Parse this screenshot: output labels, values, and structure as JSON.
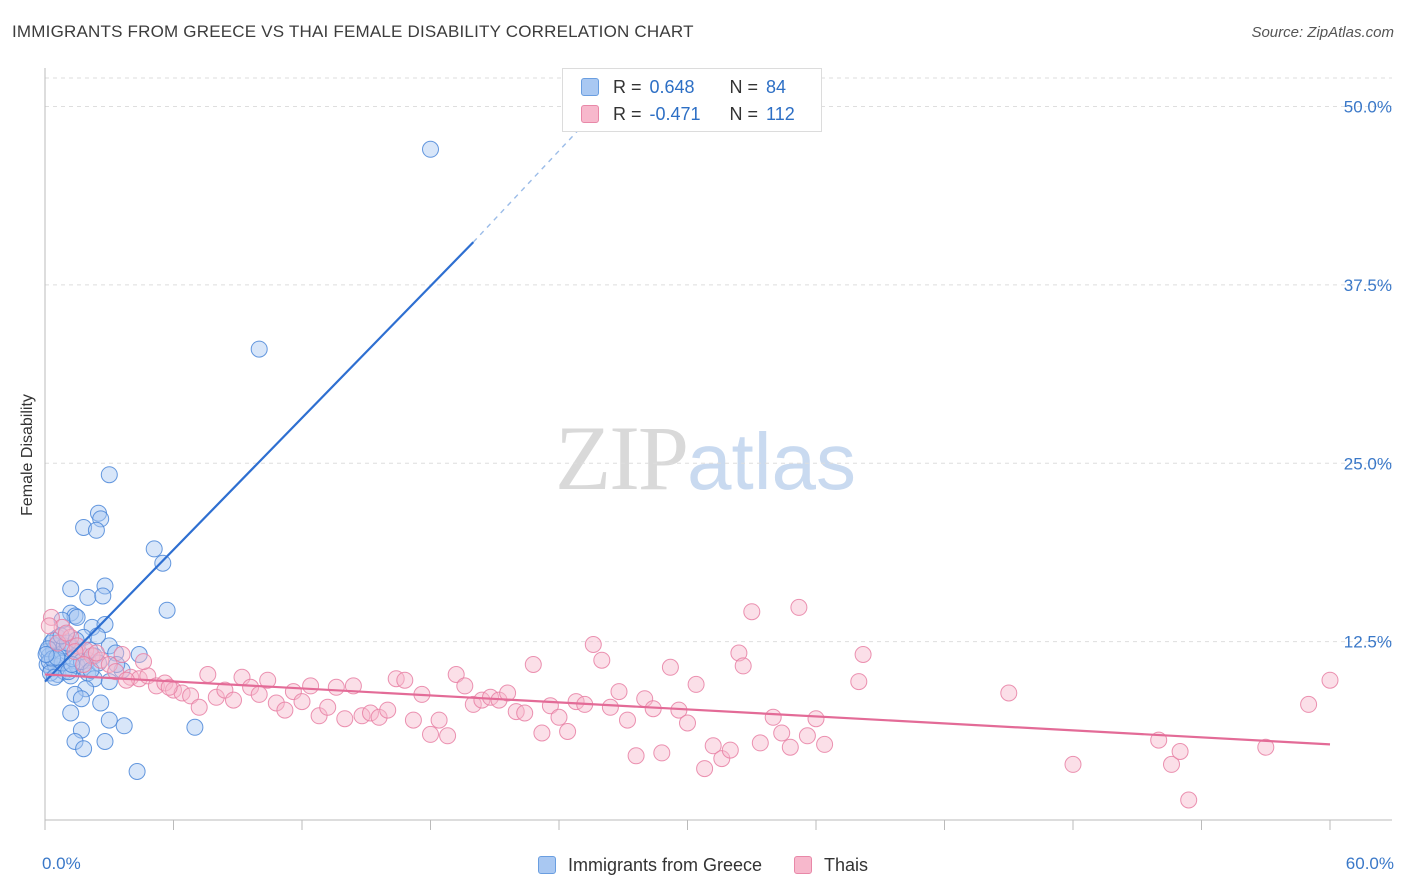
{
  "header": {
    "title": "IMMIGRANTS FROM GREECE VS THAI FEMALE DISABILITY CORRELATION CHART",
    "source": "Source: ZipAtlas.com"
  },
  "watermark": {
    "part1": "ZIP",
    "part2": "atlas"
  },
  "legend": {
    "rows": [
      {
        "r_label": "R =",
        "r_value": "0.648",
        "n_label": "N =",
        "n_value": "84",
        "color": "#a9c8f2",
        "border": "#6a9ee0"
      },
      {
        "r_label": "R =",
        "r_value": "-0.471",
        "n_label": "N =",
        "n_value": "112",
        "color": "#f7b8cc",
        "border": "#e888a8"
      }
    ]
  },
  "bottom_legend": [
    {
      "label": "Immigrants from Greece",
      "color": "#a9c8f2",
      "border": "#6a9ee0"
    },
    {
      "label": "Thais",
      "color": "#f7b8cc",
      "border": "#e888a8"
    }
  ],
  "chart_data": {
    "type": "scatter",
    "title": "IMMIGRANTS FROM GREECE VS THAI FEMALE DISABILITY CORRELATION CHART",
    "xlabel": "",
    "ylabel": "Female Disability",
    "xlim": [
      0,
      60
    ],
    "ylim": [
      0,
      52
    ],
    "x_tick_labels": [
      "0.0%",
      "60.0%"
    ],
    "y_ticks": [
      12.5,
      25.0,
      37.5,
      50.0
    ],
    "y_tick_labels": [
      "12.5%",
      "25.0%",
      "37.5%",
      "50.0%"
    ],
    "grid": true,
    "legend_position": "top-center",
    "series": [
      {
        "name": "Immigrants from Greece",
        "color": "#4a86d8",
        "fill": "#a9c8f2",
        "trend": {
          "x": [
            0,
            20
          ],
          "y": [
            9.7,
            40.5
          ],
          "dashed_to": [
            25,
            48.5
          ],
          "color": "#2e6fd1"
        },
        "points": [
          [
            18,
            47
          ],
          [
            10,
            33
          ],
          [
            3,
            24.2
          ],
          [
            2.5,
            21.5
          ],
          [
            2.6,
            21.1
          ],
          [
            1.8,
            20.5
          ],
          [
            2.4,
            20.3
          ],
          [
            5.1,
            19
          ],
          [
            5.5,
            18
          ],
          [
            1.2,
            16.2
          ],
          [
            2.8,
            16.4
          ],
          [
            2.0,
            15.6
          ],
          [
            2.7,
            15.7
          ],
          [
            5.7,
            14.7
          ],
          [
            1.2,
            14.5
          ],
          [
            1.4,
            14.3
          ],
          [
            0.8,
            14.0
          ],
          [
            1.5,
            14.2
          ],
          [
            2.2,
            13.5
          ],
          [
            2.8,
            13.7
          ],
          [
            0.6,
            12.8
          ],
          [
            1.0,
            13.0
          ],
          [
            1.8,
            12.8
          ],
          [
            0.3,
            12.4
          ],
          [
            0.5,
            12.2
          ],
          [
            0.1,
            11.8
          ],
          [
            0.2,
            11.5
          ],
          [
            0.4,
            11.9
          ],
          [
            0.7,
            11.6
          ],
          [
            1.0,
            11.8
          ],
          [
            1.3,
            12.0
          ],
          [
            1.6,
            11.7
          ],
          [
            2.0,
            11.2
          ],
          [
            2.3,
            11.5
          ],
          [
            3.0,
            12.2
          ],
          [
            3.3,
            11.7
          ],
          [
            4.4,
            11.6
          ],
          [
            0.1,
            10.9
          ],
          [
            0.3,
            10.6
          ],
          [
            0.6,
            10.2
          ],
          [
            0.9,
            10.4
          ],
          [
            1.2,
            10.1
          ],
          [
            1.5,
            10.8
          ],
          [
            1.8,
            10.7
          ],
          [
            2.0,
            10.3
          ],
          [
            2.3,
            9.9
          ],
          [
            3.0,
            9.7
          ],
          [
            3.6,
            10.5
          ],
          [
            0.2,
            11.1
          ],
          [
            0.5,
            10.8
          ],
          [
            0.8,
            11.0
          ],
          [
            1.1,
            10.4
          ],
          [
            1.3,
            11.3
          ],
          [
            1.7,
            11.1
          ],
          [
            0.4,
            12.6
          ],
          [
            1.9,
            9.2
          ],
          [
            1.4,
            8.8
          ],
          [
            1.7,
            8.5
          ],
          [
            2.6,
            8.2
          ],
          [
            1.2,
            7.5
          ],
          [
            3.0,
            7.0
          ],
          [
            3.7,
            6.6
          ],
          [
            1.7,
            6.3
          ],
          [
            7.0,
            6.5
          ],
          [
            2.8,
            5.5
          ],
          [
            1.4,
            5.5
          ],
          [
            1.8,
            5.0
          ],
          [
            4.3,
            3.4
          ],
          [
            0.9,
            12.2
          ],
          [
            2.5,
            11.0
          ],
          [
            0.15,
            12.0
          ],
          [
            0.35,
            11.3
          ],
          [
            0.55,
            11.4
          ],
          [
            1.05,
            12.4
          ],
          [
            1.25,
            10.9
          ],
          [
            2.1,
            11.9
          ],
          [
            0.25,
            10.3
          ],
          [
            0.75,
            12.9
          ],
          [
            1.45,
            12.6
          ],
          [
            2.45,
            12.9
          ],
          [
            3.35,
            10.9
          ],
          [
            0.05,
            11.6
          ],
          [
            0.45,
            10.0
          ],
          [
            2.15,
            10.5
          ]
        ]
      },
      {
        "name": "Thais",
        "color": "#e77fa3",
        "fill": "#f7b8cc",
        "trend": {
          "x": [
            0,
            60
          ],
          "y": [
            10.2,
            5.3
          ],
          "color": "#e36b97"
        },
        "points": [
          [
            0.3,
            14.2
          ],
          [
            0.8,
            13.5
          ],
          [
            1.2,
            12.8
          ],
          [
            1.5,
            12.2
          ],
          [
            1.9,
            11.9
          ],
          [
            2.2,
            11.5
          ],
          [
            2.6,
            11.2
          ],
          [
            3.0,
            10.9
          ],
          [
            3.3,
            10.4
          ],
          [
            3.6,
            11.6
          ],
          [
            4.0,
            10.0
          ],
          [
            4.4,
            9.9
          ],
          [
            4.8,
            10.1
          ],
          [
            5.2,
            9.4
          ],
          [
            5.6,
            9.6
          ],
          [
            6.0,
            9.1
          ],
          [
            6.4,
            8.9
          ],
          [
            6.8,
            8.7
          ],
          [
            7.2,
            7.9
          ],
          [
            7.6,
            10.2
          ],
          [
            8.0,
            8.6
          ],
          [
            8.4,
            9.1
          ],
          [
            8.8,
            8.4
          ],
          [
            9.2,
            10.0
          ],
          [
            9.6,
            9.3
          ],
          [
            10.0,
            8.8
          ],
          [
            10.4,
            9.8
          ],
          [
            10.8,
            8.2
          ],
          [
            11.2,
            7.7
          ],
          [
            11.6,
            9.0
          ],
          [
            12.0,
            8.3
          ],
          [
            12.4,
            9.4
          ],
          [
            12.8,
            7.3
          ],
          [
            13.2,
            7.9
          ],
          [
            13.6,
            9.3
          ],
          [
            14.0,
            7.1
          ],
          [
            14.4,
            9.4
          ],
          [
            14.8,
            7.3
          ],
          [
            15.2,
            7.5
          ],
          [
            15.6,
            7.2
          ],
          [
            16.0,
            7.7
          ],
          [
            16.4,
            9.9
          ],
          [
            16.8,
            9.8
          ],
          [
            17.2,
            7.0
          ],
          [
            17.6,
            8.8
          ],
          [
            18.0,
            6.0
          ],
          [
            18.4,
            7.0
          ],
          [
            18.8,
            5.9
          ],
          [
            19.2,
            10.2
          ],
          [
            19.6,
            9.4
          ],
          [
            20.0,
            8.1
          ],
          [
            20.4,
            8.4
          ],
          [
            20.8,
            8.6
          ],
          [
            21.2,
            8.4
          ],
          [
            21.6,
            8.9
          ],
          [
            22.0,
            7.6
          ],
          [
            22.4,
            7.5
          ],
          [
            22.8,
            10.9
          ],
          [
            23.2,
            6.1
          ],
          [
            23.6,
            8.0
          ],
          [
            24.0,
            7.2
          ],
          [
            24.4,
            6.2
          ],
          [
            24.8,
            8.3
          ],
          [
            25.2,
            8.1
          ],
          [
            25.6,
            12.3
          ],
          [
            26.0,
            11.2
          ],
          [
            26.4,
            7.9
          ],
          [
            26.8,
            9.0
          ],
          [
            27.2,
            7.0
          ],
          [
            27.6,
            4.5
          ],
          [
            28.0,
            8.5
          ],
          [
            28.4,
            7.8
          ],
          [
            28.8,
            4.7
          ],
          [
            29.2,
            10.7
          ],
          [
            29.6,
            7.7
          ],
          [
            30.0,
            6.8
          ],
          [
            30.4,
            9.5
          ],
          [
            30.8,
            3.6
          ],
          [
            31.2,
            5.2
          ],
          [
            31.6,
            4.3
          ],
          [
            32.0,
            4.9
          ],
          [
            32.4,
            11.7
          ],
          [
            32.6,
            10.8
          ],
          [
            33.0,
            14.6
          ],
          [
            33.4,
            5.4
          ],
          [
            34.0,
            7.2
          ],
          [
            34.4,
            6.1
          ],
          [
            34.8,
            5.1
          ],
          [
            35.2,
            14.9
          ],
          [
            35.6,
            5.9
          ],
          [
            36.0,
            7.1
          ],
          [
            36.4,
            5.3
          ],
          [
            38.0,
            9.7
          ],
          [
            38.2,
            11.6
          ],
          [
            45.0,
            8.9
          ],
          [
            48.0,
            3.9
          ],
          [
            52.0,
            5.6
          ],
          [
            52.6,
            3.9
          ],
          [
            53.0,
            4.8
          ],
          [
            53.4,
            1.4
          ],
          [
            57.0,
            5.1
          ],
          [
            59.0,
            8.1
          ],
          [
            60.0,
            9.8
          ],
          [
            0.2,
            13.6
          ],
          [
            0.6,
            12.4
          ],
          [
            1.0,
            13.1
          ],
          [
            1.4,
            11.8
          ],
          [
            1.8,
            10.9
          ],
          [
            2.4,
            11.7
          ],
          [
            3.8,
            9.8
          ],
          [
            4.6,
            11.1
          ],
          [
            5.8,
            9.3
          ]
        ]
      }
    ]
  }
}
